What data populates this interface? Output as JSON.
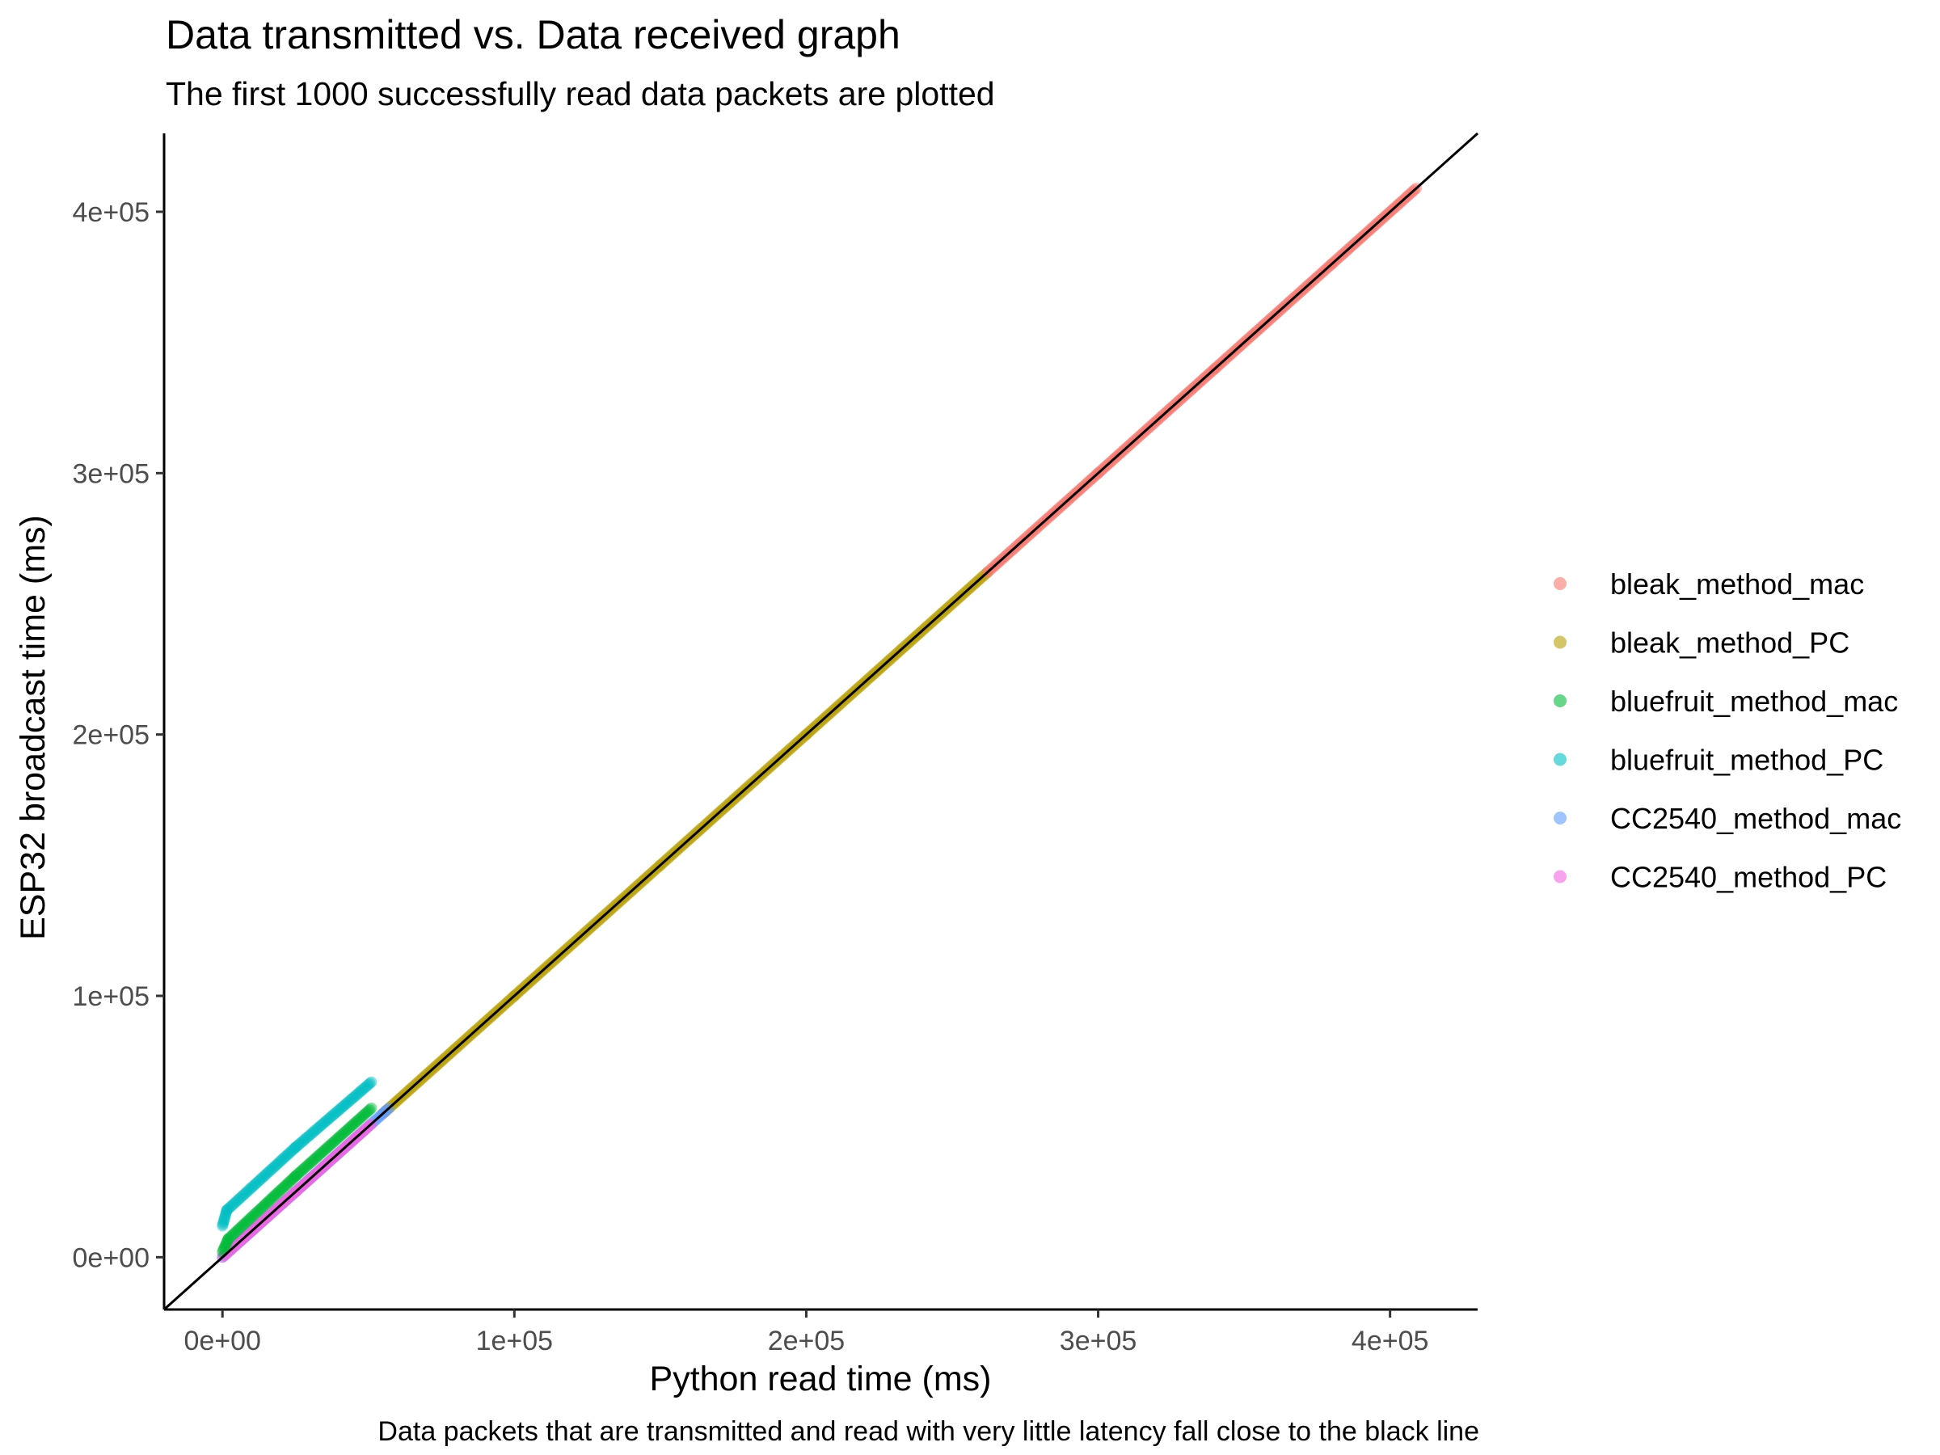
{
  "chart_data": {
    "type": "scatter",
    "title": "Data transmitted vs. Data received graph",
    "subtitle": "The first 1000 successfully read data packets are plotted",
    "caption": "Data packets that are transmitted and read with very little latency fall close to the black line",
    "xlabel": "Python read time (ms)",
    "ylabel": "ESP32 broadcast time (ms)",
    "xlim": [
      -20000,
      430000
    ],
    "ylim": [
      -20000,
      430000
    ],
    "x_ticks": [
      0,
      100000,
      200000,
      300000,
      400000
    ],
    "x_tick_labels": [
      "0e+00",
      "1e+05",
      "2e+05",
      "3e+05",
      "4e+05"
    ],
    "y_ticks": [
      0,
      100000,
      200000,
      300000,
      400000
    ],
    "y_tick_labels": [
      "0e+00",
      "1e+05",
      "2e+05",
      "3e+05",
      "4e+05"
    ],
    "grid": false,
    "legend_position": "right",
    "reference_line": {
      "slope": 1,
      "intercept": 0,
      "color": "#000000"
    },
    "series": [
      {
        "name": "bleak_method_mac",
        "color": "#F8766D",
        "x": [
          262000,
          300000,
          340000,
          380000,
          409000
        ],
        "y": [
          262000,
          300000,
          340000,
          380000,
          409000
        ]
      },
      {
        "name": "bleak_method_PC",
        "color": "#B79F00",
        "x": [
          55000,
          100000,
          150000,
          200000,
          262000
        ],
        "y": [
          55000,
          100000,
          150000,
          200000,
          262000
        ]
      },
      {
        "name": "bluefruit_method_mac",
        "color": "#00BA38",
        "x": [
          0,
          2000,
          25000,
          51000
        ],
        "y": [
          2000,
          7000,
          31000,
          57000
        ]
      },
      {
        "name": "bluefruit_method_PC",
        "color": "#00BFC4",
        "x": [
          0,
          1500,
          25000,
          51000
        ],
        "y": [
          12000,
          18000,
          42000,
          67000
        ]
      },
      {
        "name": "CC2540_method_mac",
        "color": "#619CFF",
        "x": [
          0,
          30000,
          57000
        ],
        "y": [
          0,
          30000,
          57000
        ]
      },
      {
        "name": "CC2540_method_PC",
        "color": "#F564E3",
        "x": [
          0,
          25000,
          51000
        ],
        "y": [
          0,
          25000,
          51000
        ]
      }
    ]
  }
}
